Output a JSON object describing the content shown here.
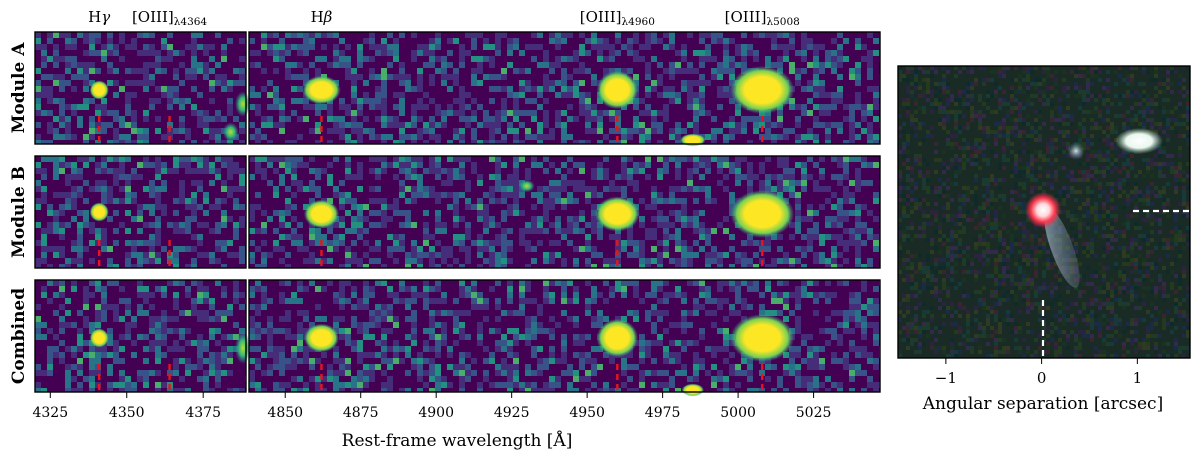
{
  "figure": {
    "line_labels": [
      {
        "name": "H",
        "greek": "γ",
        "sub": "",
        "wavelength": 4341
      },
      {
        "name": "[OIII]",
        "greek": "",
        "sub": "λ4364",
        "wavelength": 4364
      },
      {
        "name": "H",
        "greek": "β",
        "sub": "",
        "wavelength": 4862
      },
      {
        "name": "[OIII]",
        "greek": "",
        "sub": "λ4960",
        "wavelength": 4960
      },
      {
        "name": "[OIII]",
        "greek": "",
        "sub": "λ5008",
        "wavelength": 5008
      }
    ],
    "rows": [
      "Module A",
      "Module B",
      "Combined"
    ],
    "spectra_xlabel": "Rest-frame wavelength [Å]",
    "image_xlabel": "Angular separation [arcsec]"
  },
  "chart_data": [
    {
      "type": "heatmap",
      "panel": "left",
      "x_range": [
        4320,
        4389
      ],
      "x_ticks": [
        4325,
        4350,
        4375
      ],
      "line_markers": [
        4341,
        4364
      ],
      "title": "",
      "xlabel": "Rest-frame wavelength [Å]",
      "ylabel": ""
    },
    {
      "type": "heatmap",
      "panel": "right",
      "x_range": [
        4838,
        5047
      ],
      "x_ticks": [
        4850,
        4875,
        4900,
        4925,
        4950,
        4975,
        5000,
        5025
      ],
      "line_markers": [
        4862,
        4960,
        5008
      ],
      "title": "",
      "xlabel": "Rest-frame wavelength [Å]",
      "ylabel": ""
    },
    {
      "type": "heatmap",
      "panel": "image",
      "x_range": [
        -1.5,
        1.55
      ],
      "x_ticks": [
        -1,
        0,
        1
      ],
      "xlabel": "Angular separation [arcsec]",
      "ylabel": ""
    }
  ]
}
